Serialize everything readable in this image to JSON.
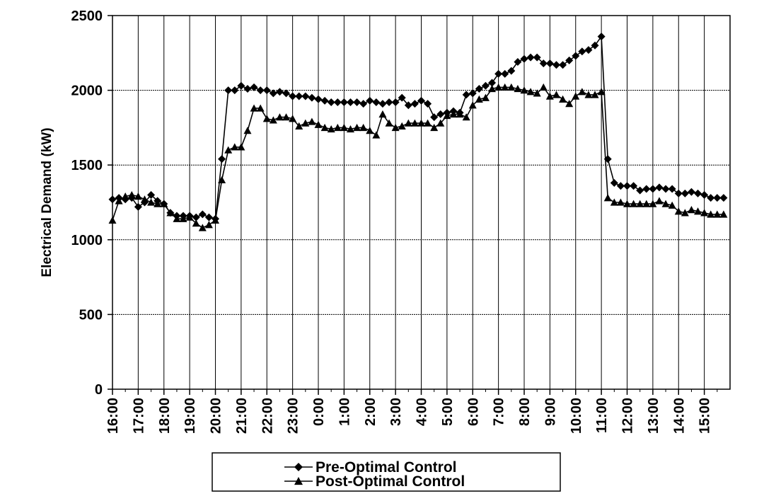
{
  "chart_data": {
    "type": "line",
    "ylabel": "Electrical Demand (kW)",
    "xlabel": "",
    "ylim": [
      0,
      2500
    ],
    "yticks": [
      0,
      500,
      1000,
      1500,
      2000,
      2500
    ],
    "grid": true,
    "legend_position": "bottom-center",
    "x_tick_labels": [
      "16:00",
      "17:00",
      "18:00",
      "19:00",
      "20:00",
      "21:00",
      "22:00",
      "23:00",
      "0:00",
      "1:00",
      "2:00",
      "3:00",
      "4:00",
      "5:00",
      "6:00",
      "7:00",
      "8:00",
      "9:00",
      "10:00",
      "11:00",
      "12:00",
      "13:00",
      "14:00",
      "15:00"
    ],
    "x_unit": "hours after 16:00",
    "xlim": [
      0,
      24
    ],
    "series": [
      {
        "name": "Pre-Optimal Control",
        "marker": "diamond",
        "color": "#000000",
        "x": [
          0.0,
          0.25,
          0.5,
          0.75,
          1.0,
          1.25,
          1.5,
          1.75,
          2.0,
          2.25,
          2.5,
          2.75,
          3.0,
          3.25,
          3.5,
          3.75,
          4.0,
          4.25,
          4.5,
          4.75,
          5.0,
          5.25,
          5.5,
          5.75,
          6.0,
          6.25,
          6.5,
          6.75,
          7.0,
          7.25,
          7.5,
          7.75,
          8.0,
          8.25,
          8.5,
          8.75,
          9.0,
          9.25,
          9.5,
          9.75,
          10.0,
          10.25,
          10.5,
          10.75,
          11.0,
          11.25,
          11.5,
          11.75,
          12.0,
          12.25,
          12.5,
          12.75,
          13.0,
          13.25,
          13.5,
          13.75,
          14.0,
          14.25,
          14.5,
          14.75,
          15.0,
          15.25,
          15.5,
          15.75,
          16.0,
          16.25,
          16.5,
          16.75,
          17.0,
          17.25,
          17.5,
          17.75,
          18.0,
          18.25,
          18.5,
          18.75,
          19.0,
          19.25,
          19.5,
          19.75,
          20.0,
          20.25,
          20.5,
          20.75,
          21.0,
          21.25,
          21.5,
          21.75,
          22.0,
          22.25,
          22.5,
          22.75,
          23.0,
          23.25,
          23.5,
          23.75
        ],
        "values": [
          1270,
          1280,
          1270,
          1280,
          1220,
          1250,
          1300,
          1260,
          1240,
          1180,
          1160,
          1160,
          1160,
          1150,
          1170,
          1150,
          1140,
          1540,
          2000,
          2000,
          2030,
          2010,
          2020,
          2000,
          2000,
          1980,
          1990,
          1980,
          1960,
          1960,
          1960,
          1950,
          1940,
          1930,
          1920,
          1920,
          1920,
          1920,
          1920,
          1910,
          1930,
          1920,
          1910,
          1920,
          1920,
          1950,
          1900,
          1910,
          1930,
          1910,
          1820,
          1840,
          1850,
          1860,
          1850,
          1970,
          1980,
          2010,
          2030,
          2050,
          2110,
          2110,
          2130,
          2190,
          2210,
          2220,
          2220,
          2180,
          2180,
          2170,
          2170,
          2200,
          2230,
          2260,
          2270,
          2300,
          2360,
          1540,
          1380,
          1360,
          1360,
          1360,
          1330,
          1340,
          1340,
          1350,
          1340,
          1340,
          1310,
          1310,
          1320,
          1310,
          1300,
          1280,
          1280,
          1280
        ]
      },
      {
        "name": "Post-Optimal Control",
        "marker": "triangle",
        "color": "#000000",
        "x": [
          0.0,
          0.25,
          0.5,
          0.75,
          1.0,
          1.25,
          1.5,
          1.75,
          2.0,
          2.25,
          2.5,
          2.75,
          3.0,
          3.25,
          3.5,
          3.75,
          4.0,
          4.25,
          4.5,
          4.75,
          5.0,
          5.25,
          5.5,
          5.75,
          6.0,
          6.25,
          6.5,
          6.75,
          7.0,
          7.25,
          7.5,
          7.75,
          8.0,
          8.25,
          8.5,
          8.75,
          9.0,
          9.25,
          9.5,
          9.75,
          10.0,
          10.25,
          10.5,
          10.75,
          11.0,
          11.25,
          11.5,
          11.75,
          12.0,
          12.25,
          12.5,
          12.75,
          13.0,
          13.25,
          13.5,
          13.75,
          14.0,
          14.25,
          14.5,
          14.75,
          15.0,
          15.25,
          15.5,
          15.75,
          16.0,
          16.25,
          16.5,
          16.75,
          17.0,
          17.25,
          17.5,
          17.75,
          18.0,
          18.25,
          18.5,
          18.75,
          19.0,
          19.25,
          19.5,
          19.75,
          20.0,
          20.25,
          20.5,
          20.75,
          21.0,
          21.25,
          21.5,
          21.75,
          22.0,
          22.25,
          22.5,
          22.75,
          23.0,
          23.25,
          23.5,
          23.75
        ],
        "values": [
          1130,
          1260,
          1290,
          1300,
          1290,
          1270,
          1250,
          1240,
          1240,
          1180,
          1140,
          1140,
          1150,
          1110,
          1080,
          1100,
          1130,
          1400,
          1600,
          1620,
          1620,
          1730,
          1880,
          1880,
          1810,
          1800,
          1820,
          1820,
          1810,
          1760,
          1780,
          1790,
          1770,
          1750,
          1740,
          1750,
          1750,
          1740,
          1750,
          1750,
          1730,
          1700,
          1840,
          1780,
          1750,
          1760,
          1780,
          1780,
          1780,
          1780,
          1750,
          1780,
          1830,
          1840,
          1840,
          1820,
          1900,
          1940,
          1950,
          2010,
          2020,
          2020,
          2020,
          2010,
          2000,
          1990,
          1980,
          2020,
          1960,
          1970,
          1940,
          1910,
          1960,
          1990,
          1970,
          1970,
          1990,
          1280,
          1250,
          1250,
          1240,
          1240,
          1240,
          1240,
          1240,
          1260,
          1240,
          1230,
          1190,
          1180,
          1200,
          1190,
          1180,
          1170,
          1170,
          1170
        ]
      }
    ]
  }
}
